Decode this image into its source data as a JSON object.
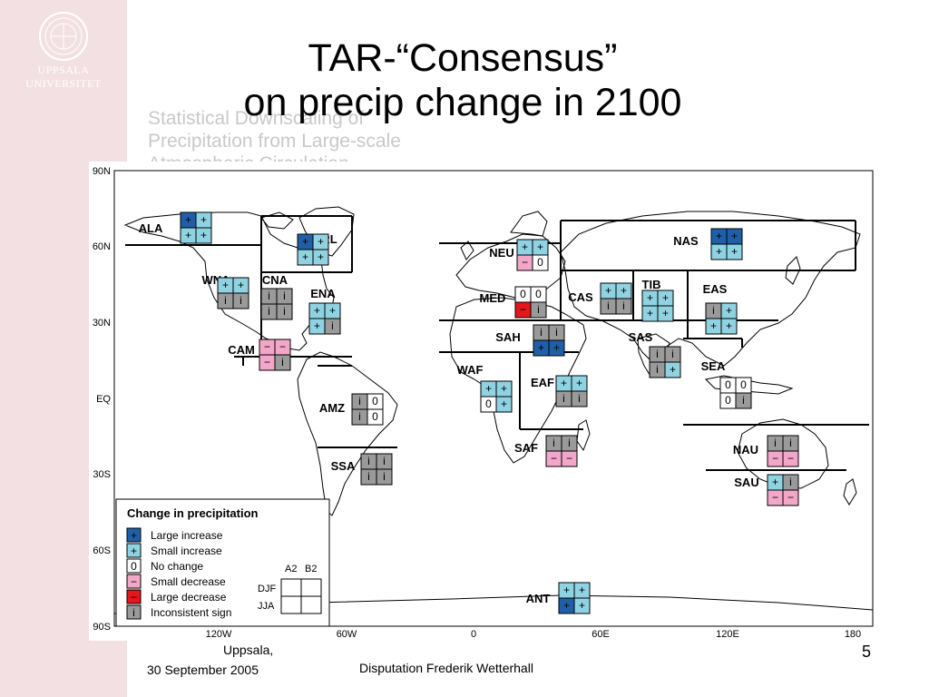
{
  "institution": {
    "line1": "UPPSALA",
    "line2": "UNIVERSITET"
  },
  "slide": {
    "title_line1": "TAR-“Consensus”",
    "title_line2": "on precip change in 2100",
    "ghost_text": [
      "Statistical Downscaling of",
      "Precipitation from Large-scale",
      "Atmospheric Circulation"
    ]
  },
  "figure": {
    "y_axis": [
      "90N",
      "60N",
      "30N",
      "EQ",
      "30S",
      "60S",
      "90S"
    ],
    "x_axis": [
      "120W",
      "60W",
      "0",
      "60E",
      "120E",
      "180"
    ],
    "regions": [
      {
        "code": "ALA",
        "cells": [
          "L",
          "S",
          "S",
          "S"
        ]
      },
      {
        "code": "GRL",
        "cells": [
          "L",
          "S",
          "S",
          "S"
        ]
      },
      {
        "code": "WNA",
        "cells": [
          "S",
          "S",
          "i",
          "i"
        ]
      },
      {
        "code": "CNA",
        "cells": [
          "i",
          "i",
          "i",
          "i"
        ]
      },
      {
        "code": "ENA",
        "cells": [
          "S",
          "S",
          "S",
          "i"
        ]
      },
      {
        "code": "CAM",
        "cells": [
          "D",
          "D",
          "D",
          "i"
        ]
      },
      {
        "code": "AMZ",
        "cells": [
          "i",
          "0",
          "i",
          "0"
        ]
      },
      {
        "code": "SSA",
        "cells": [
          "i",
          "i",
          "i",
          "i"
        ]
      },
      {
        "code": "NEU",
        "cells": [
          "S",
          "S",
          "D",
          "0"
        ]
      },
      {
        "code": "MED",
        "cells": [
          "0",
          "0",
          "X",
          "i"
        ]
      },
      {
        "code": "SAH",
        "cells": [
          "i",
          "i",
          "L",
          "L"
        ]
      },
      {
        "code": "WAF",
        "cells": [
          "S",
          "S",
          "0",
          "S"
        ]
      },
      {
        "code": "EAF",
        "cells": [
          "S",
          "S",
          "i",
          "i"
        ]
      },
      {
        "code": "SAF",
        "cells": [
          "i",
          "i",
          "D",
          "D"
        ]
      },
      {
        "code": "NAS",
        "cells": [
          "L",
          "L",
          "S",
          "S"
        ]
      },
      {
        "code": "CAS",
        "cells": [
          "S",
          "S",
          "i",
          "i"
        ]
      },
      {
        "code": "TIB",
        "cells": [
          "S",
          "S",
          "S",
          "S"
        ]
      },
      {
        "code": "EAS",
        "cells": [
          "i",
          "S",
          "S",
          "S"
        ]
      },
      {
        "code": "SAS",
        "cells": [
          "i",
          "i",
          "i",
          "S"
        ]
      },
      {
        "code": "SEA",
        "cells": [
          "0",
          "0",
          "0",
          "i"
        ]
      },
      {
        "code": "NAU",
        "cells": [
          "i",
          "i",
          "D",
          "D"
        ]
      },
      {
        "code": "SAU",
        "cells": [
          "S",
          "i",
          "D",
          "D"
        ]
      },
      {
        "code": "ANT",
        "cells": [
          "S",
          "S",
          "L",
          "S"
        ]
      }
    ],
    "legend": {
      "title": "Change in precipitation",
      "items": [
        {
          "symbol": "+",
          "label": "Large increase",
          "color": "#1f5fa8",
          "fg": "#000000"
        },
        {
          "symbol": "+",
          "label": "Small increase",
          "color": "#8fd3e3",
          "fg": "#000000"
        },
        {
          "symbol": "0",
          "label": "No change",
          "color": "#ffffff",
          "fg": "#000000"
        },
        {
          "symbol": "−",
          "label": "Small decrease",
          "color": "#f2a7c9",
          "fg": "#000000"
        },
        {
          "symbol": "−",
          "label": "Large decrease",
          "color": "#e8151b",
          "fg": "#000000"
        },
        {
          "symbol": "i",
          "label": "Inconsistent sign",
          "color": "#9a9a9a",
          "fg": "#000000"
        }
      ],
      "scenario_a": "A2",
      "scenario_b": "B2",
      "season_1": "DJF",
      "season_2": "JJA"
    }
  },
  "footer": {
    "place": "Uppsala,",
    "date": "30 September 2005",
    "event": "Disputation Frederik Wetterhall",
    "page": "5"
  }
}
